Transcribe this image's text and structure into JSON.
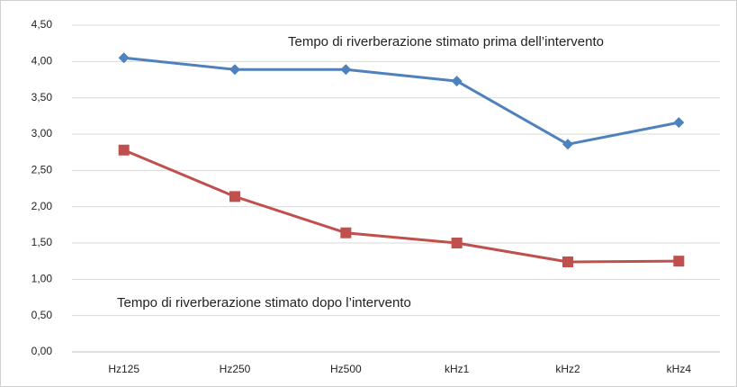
{
  "chart_data": {
    "type": "line",
    "categories": [
      "Hz125",
      "Hz250",
      "Hz500",
      "kHz1",
      "kHz2",
      "kHz4"
    ],
    "series": [
      {
        "name": "Tempo di riverberazione stimato prima dell’intervento",
        "color": "#4f81bd",
        "marker": "diamond",
        "values": [
          4.05,
          3.89,
          3.89,
          3.73,
          2.86,
          3.16
        ]
      },
      {
        "name": "Tempo di riverberazione stimato dopo l’intervento",
        "color": "#c0504d",
        "marker": "square",
        "values": [
          2.78,
          2.14,
          1.64,
          1.5,
          1.24,
          1.25
        ]
      }
    ],
    "ylim": [
      0,
      4.5
    ],
    "yticks": [
      {
        "value": 0,
        "label": "0,00"
      },
      {
        "value": 0.5,
        "label": "0,50"
      },
      {
        "value": 1,
        "label": "1,00"
      },
      {
        "value": 1.5,
        "label": "1,50"
      },
      {
        "value": 2,
        "label": "2,00"
      },
      {
        "value": 2.5,
        "label": "2,50"
      },
      {
        "value": 3,
        "label": "3,00"
      },
      {
        "value": 3.5,
        "label": "3,50"
      },
      {
        "value": 4,
        "label": "4,00"
      },
      {
        "value": 4.5,
        "label": "4,50"
      }
    ],
    "grid": true
  }
}
